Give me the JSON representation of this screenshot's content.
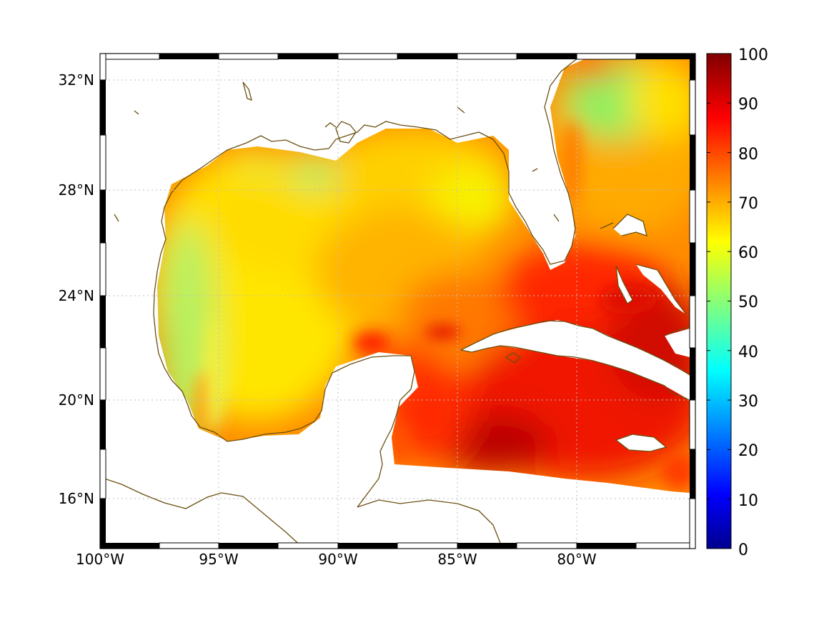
{
  "map": {
    "projection": "equirectangular",
    "lon_range": [
      -100,
      -75
    ],
    "lat_range": [
      14.2,
      33
    ],
    "grid": true,
    "coastline_color": "#6b4f10",
    "lat_ticks": [
      {
        "value": 32,
        "label": "32°N"
      },
      {
        "value": 28,
        "label": "28°N"
      },
      {
        "value": 24,
        "label": "24°N"
      },
      {
        "value": 20,
        "label": "20°N"
      },
      {
        "value": 16,
        "label": "16°N"
      }
    ],
    "lon_ticks": [
      {
        "value": -100,
        "label": "100°W"
      },
      {
        "value": -95,
        "label": "95°W"
      },
      {
        "value": -90,
        "label": "90°W"
      },
      {
        "value": -85,
        "label": "85°W"
      },
      {
        "value": -80,
        "label": "80°W"
      }
    ]
  },
  "colorbar": {
    "colormap": "jet",
    "range": [
      0,
      100
    ],
    "placement": "right",
    "ticks": [
      {
        "value": 100,
        "label": "100"
      },
      {
        "value": 90,
        "label": "90"
      },
      {
        "value": 80,
        "label": "80"
      },
      {
        "value": 70,
        "label": "70"
      },
      {
        "value": 60,
        "label": "60"
      },
      {
        "value": 50,
        "label": "50"
      },
      {
        "value": 40,
        "label": "40"
      },
      {
        "value": 30,
        "label": "30"
      },
      {
        "value": 20,
        "label": "20"
      },
      {
        "value": 10,
        "label": "10"
      },
      {
        "value": 0,
        "label": "0"
      }
    ]
  },
  "field_regions": [
    {
      "name": "western-gulf-coastal",
      "approx_value": 55
    },
    {
      "name": "western-gulf",
      "approx_value": 65
    },
    {
      "name": "northern-gulf",
      "approx_value": 68
    },
    {
      "name": "central-gulf",
      "approx_value": 72
    },
    {
      "name": "eastern-gulf",
      "approx_value": 78
    },
    {
      "name": "florida-straits",
      "approx_value": 85
    },
    {
      "name": "western-atlantic",
      "approx_value": 72
    },
    {
      "name": "caribbean",
      "approx_value": 88
    },
    {
      "name": "caribbean-south",
      "approx_value": 93
    }
  ]
}
